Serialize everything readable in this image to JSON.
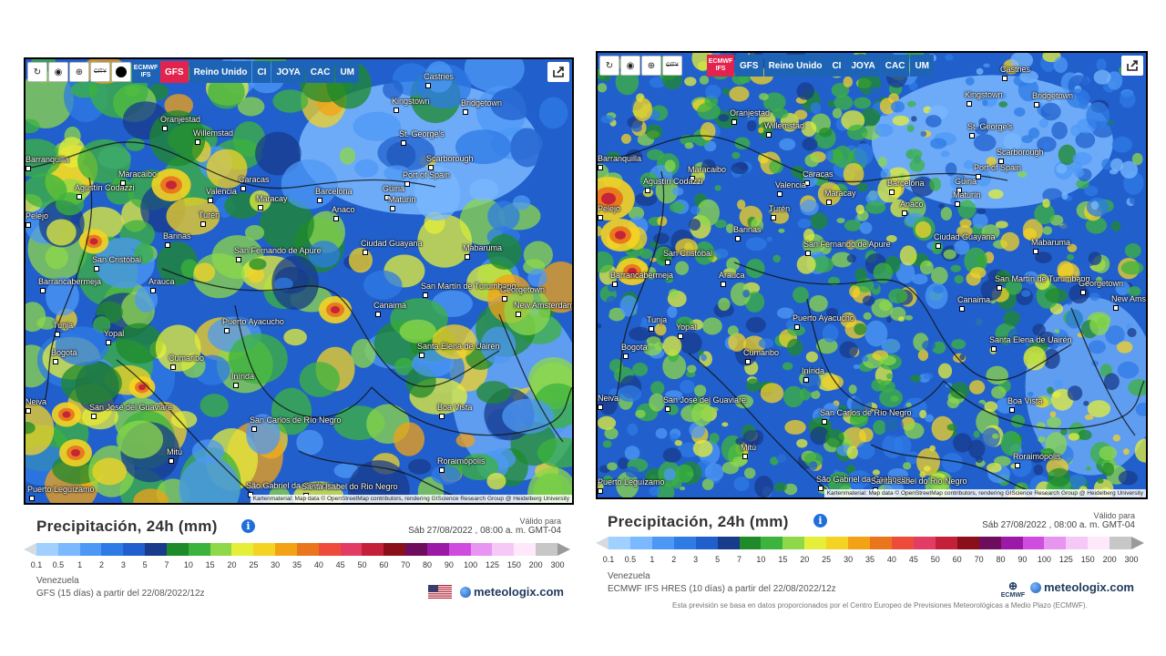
{
  "colors": {
    "scale": [
      "#9fd0ff",
      "#7ab8ff",
      "#4e98f5",
      "#2f7be6",
      "#2160cc",
      "#183b8c",
      "#1f8a2a",
      "#3cb33c",
      "#8ed84a",
      "#e5ef3a",
      "#f5d324",
      "#f3a216",
      "#e9751c",
      "#ef4b3a",
      "#e23c64",
      "#c4203a",
      "#8a0f18",
      "#6e0d5e",
      "#9b19a6",
      "#d04be0",
      "#e895f2",
      "#f5c8f7",
      "#ffe8fa",
      "#c7c7c7"
    ],
    "accent_model": "#e2234e",
    "toolbar_model": "#1e64b4"
  },
  "left": {
    "toolbar": {
      "icons": [
        "refresh-icon",
        "location-pin-icon",
        "zoom-icon",
        "city-toggle-icon",
        "dot-icon"
      ],
      "city_label": "CITY",
      "models": [
        {
          "label": "ECMWF IFS",
          "active": false
        },
        {
          "label": "GFS",
          "active": true
        },
        {
          "label": "Reino Unido",
          "active": false
        },
        {
          "label": "CI",
          "active": false
        },
        {
          "label": "JOYA",
          "active": false
        },
        {
          "label": "CAC",
          "active": false
        },
        {
          "label": "UM",
          "active": false
        }
      ]
    },
    "cities": [
      "Castries",
      "Kingstown",
      "Bridgetown",
      "Oranjestad",
      "Willemstad",
      "St. George's",
      "Barranquilla",
      "Maracaibo",
      "Caracas",
      "Scarborough",
      "Port of Spain",
      "Agustín Codazzi",
      "Valencia",
      "Maracay",
      "Barcelona",
      "Güiria",
      "Turén",
      "Anaco",
      "Maturín",
      "Barinas",
      "Ciudad Guayana",
      "Mabaruma",
      "San Cristóbal",
      "San Fernando de Apure",
      "Barrancabermeja",
      "Arauca",
      "San Martín de Turumbang",
      "Georgetown",
      "New Amsterdam",
      "Canaima",
      "Tunja",
      "Yopal",
      "Puerto Ayacucho",
      "Bogotá",
      "Cumaribo",
      "Santa Elena de Uairén",
      "Inírida",
      "Neiva",
      "San José del Guaviare",
      "Boa Vista",
      "San Carlos de Río Negro",
      "Mitú",
      "Roraimópolis",
      "Puerto Leguízamo",
      "São Gabriel da Cachoeira",
      "Santa Isabel do Rio Negro",
      "Pelejo"
    ],
    "attribution": "Kartenmaterial: Map data © OpenStreetMap contributors, rendering GIScience Research Group @ Heidelberg University",
    "title": "Precipitación, 24h (mm)",
    "valid_label": "Válido para",
    "valid_date": "Sáb 27/08/2022 , 08:00 a. m. GMT-04",
    "ticks": [
      "0.1",
      "0.5",
      "1",
      "2",
      "3",
      "5",
      "7",
      "10",
      "15",
      "20",
      "25",
      "30",
      "35",
      "40",
      "45",
      "50",
      "60",
      "70",
      "80",
      "90",
      "100",
      "125",
      "150",
      "200",
      "300"
    ],
    "region": "Venezuela",
    "model_run": "GFS (15 días) a partir del 22/08/2022/12z",
    "brand": "meteologix.com",
    "flag": "us-flag-icon"
  },
  "right": {
    "toolbar": {
      "icons": [
        "refresh-icon",
        "location-pin-icon",
        "zoom-icon",
        "city-toggle-icon"
      ],
      "city_label": "CITY",
      "models": [
        {
          "label": "ECMWF IFS",
          "active": true
        },
        {
          "label": "GFS",
          "active": false
        },
        {
          "label": "Reino Unido",
          "active": false
        },
        {
          "label": "CI",
          "active": false
        },
        {
          "label": "JOYA",
          "active": false
        },
        {
          "label": "CAC",
          "active": false
        },
        {
          "label": "UM",
          "active": false
        }
      ]
    },
    "attribution": "Kartenmaterial: Map data © OpenStreetMap contributors, rendering GIScience Research Group @ Heidelberg University",
    "title": "Precipitación, 24h (mm)",
    "valid_label": "Válido para",
    "valid_date": "Sáb 27/08/2022 , 08:00 a. m. GMT-04",
    "ticks": [
      "0.1",
      "0.5",
      "1",
      "2",
      "3",
      "5",
      "7",
      "10",
      "15",
      "20",
      "25",
      "30",
      "35",
      "40",
      "45",
      "50",
      "60",
      "70",
      "80",
      "90",
      "100",
      "125",
      "150",
      "200",
      "300"
    ],
    "region": "Venezuela",
    "model_run": "ECMWF IFS HRES (10 días) a partir del 22/08/2022/12z",
    "brand": "meteologix.com",
    "ecmwf_logo": "ECMWF",
    "footnote": "Esta previsión se basa en datos proporcionados por el Centro Europeo de Previsiones Meteorológicas a Medio Plazo (ECMWF)."
  }
}
